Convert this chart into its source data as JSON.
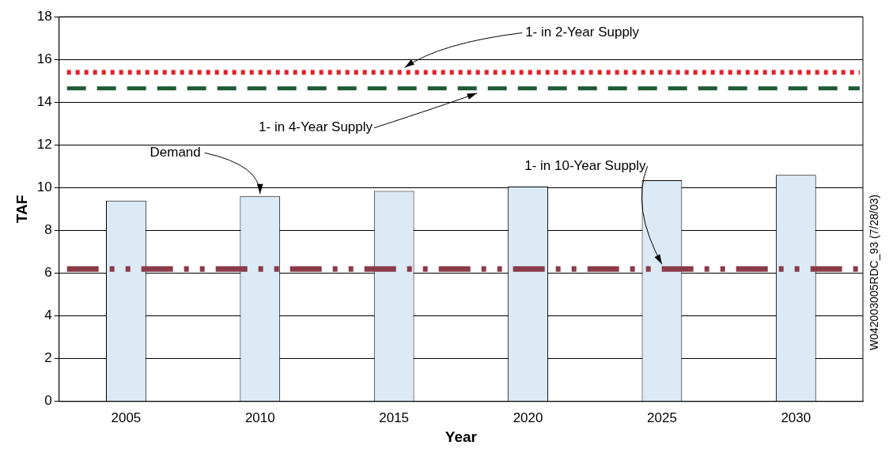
{
  "chart_data": {
    "type": "bar",
    "xlabel": "Year",
    "ylabel": "TAF",
    "categories": [
      "2005",
      "2010",
      "2015",
      "2020",
      "2025",
      "2030"
    ],
    "values": [
      9.4,
      9.6,
      9.85,
      10.05,
      10.35,
      10.6
    ],
    "color": "#dbeaf5",
    "ylim": [
      0,
      18
    ],
    "yticks": [
      0,
      2,
      4,
      6,
      8,
      10,
      12,
      14,
      16,
      18
    ],
    "grid": "y",
    "legend": false,
    "ref_lines": [
      {
        "axis": "y",
        "value": 15.4,
        "label": "1- in 2-Year Supply",
        "color": "#e3202a",
        "line_style": "dotted"
      },
      {
        "axis": "y",
        "value": 14.65,
        "label": "1- in 4-Year Supply",
        "color": "#1d5a34",
        "line_style": "dashed"
      },
      {
        "axis": "y",
        "value": 6.2,
        "label": "1- in 10-Year Supply",
        "color": "#8a3a48",
        "line_style": "dashdot"
      }
    ],
    "annotations": [
      {
        "text": "Demand",
        "x": "2010",
        "y": 9.6
      },
      "W042003005RDC_93 (7/28/03)"
    ]
  }
}
